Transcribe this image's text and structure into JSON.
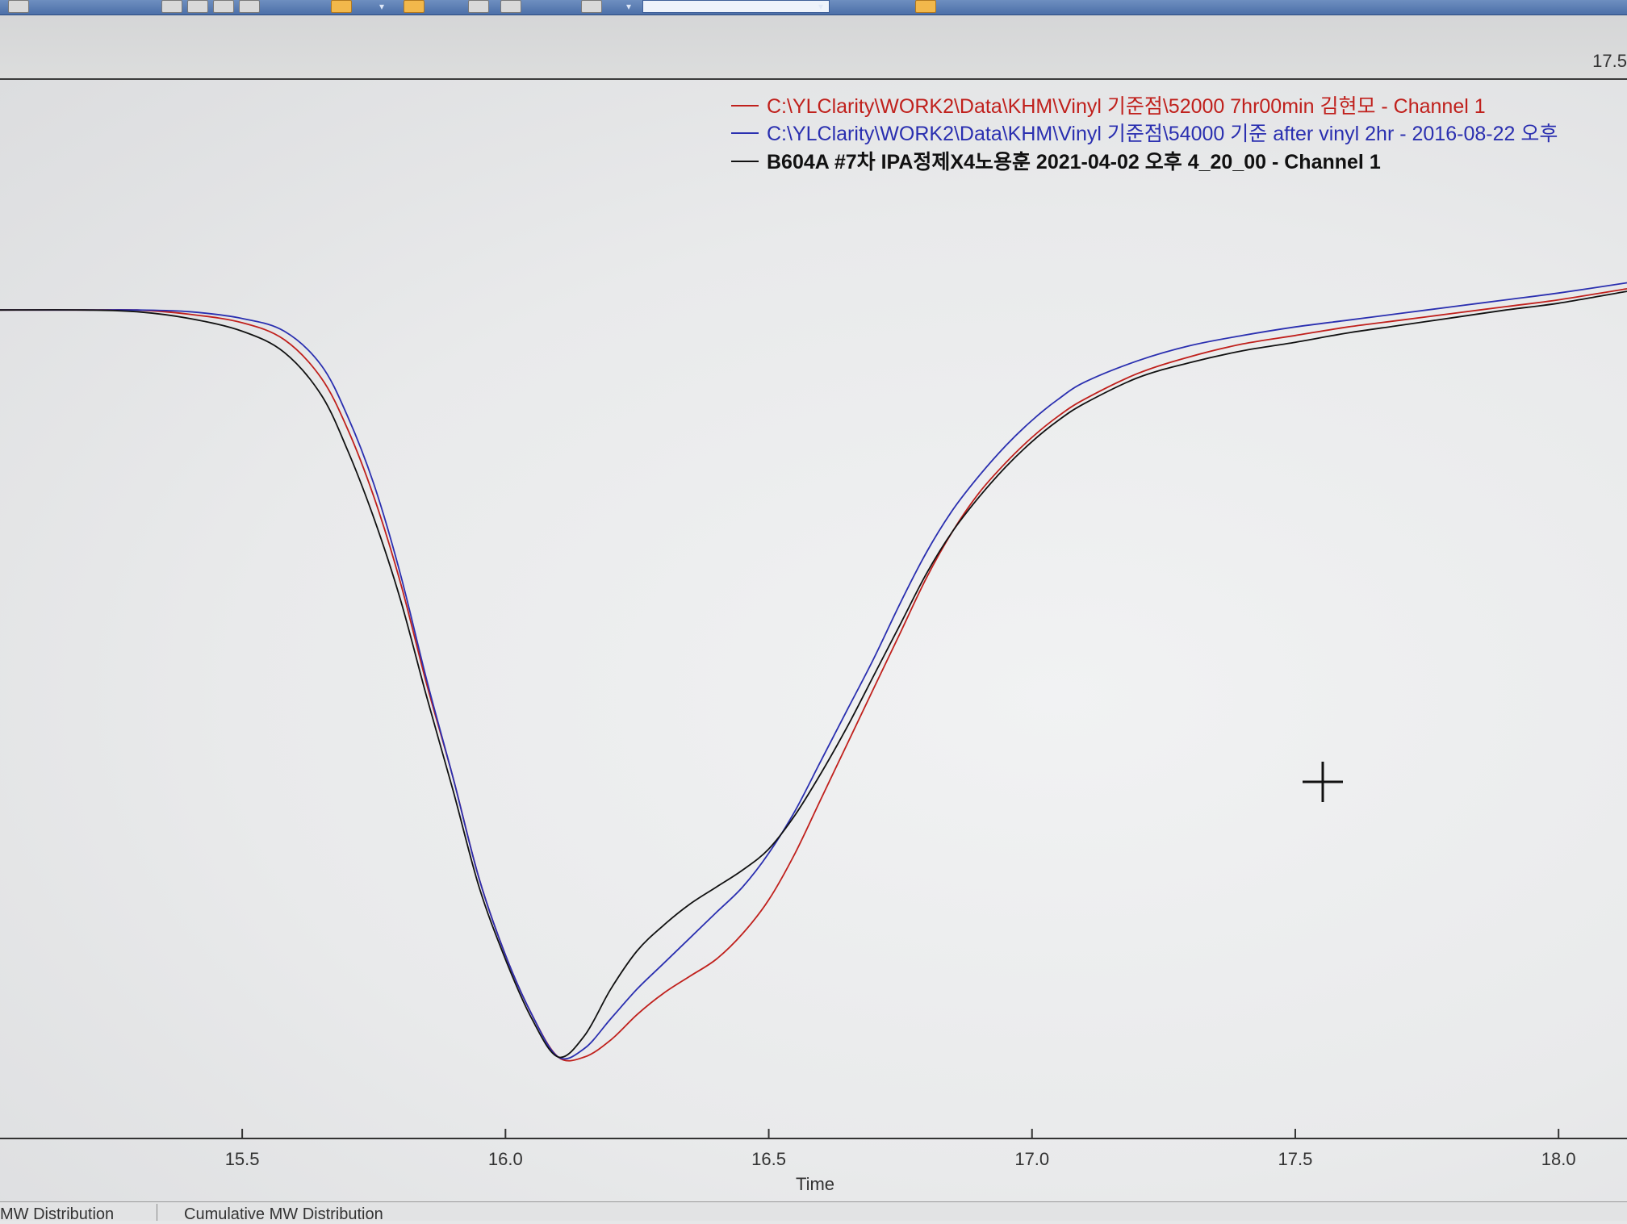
{
  "header": {
    "corner_value": "17.5"
  },
  "legend": [
    {
      "text": "C:\\YLClarity\\WORK2\\Data\\KHM\\Vinyl 기준점\\52000 7hr00min 김현모 - Channel 1",
      "color": "#c0201c"
    },
    {
      "text": "C:\\YLClarity\\WORK2\\Data\\KHM\\Vinyl 기준점\\54000 기준 after vinyl 2hr - 2016-08-22 오후",
      "color": "#2a2fb0"
    },
    {
      "text": "B604A #7차 IPA정제X4노용훈 2021-04-02 오후 4_20_00 -  Channel 1",
      "color": "#111111"
    }
  ],
  "tabs": {
    "tab1": "MW Distribution",
    "tab2": "Cumulative MW Distribution"
  },
  "cursor_icon": "crosshair-icon",
  "chart_data": {
    "type": "line",
    "title": "",
    "xlabel": "Time",
    "ylabel": "",
    "xlim": [
      15.04,
      18.13
    ],
    "ylim": [
      0,
      1
    ],
    "x_ticks": [
      15.5,
      16.0,
      16.5,
      17.0,
      17.5,
      18.0
    ],
    "x_tick_labels": [
      "15.5",
      "16.0",
      "16.5",
      "17.0",
      "17.5",
      "18.0"
    ],
    "grid": false,
    "legend_position": "top-right",
    "series": [
      {
        "name": "C:\\YLClarity\\WORK2\\Data\\KHM\\Vinyl 기준점\\52000 7hr00min 김현모 - Channel 1",
        "color": "#c0201c",
        "x": [
          15.04,
          15.2,
          15.3,
          15.4,
          15.5,
          15.58,
          15.65,
          15.7,
          15.75,
          15.8,
          15.85,
          15.9,
          15.95,
          16.0,
          16.05,
          16.1,
          16.15,
          16.2,
          16.25,
          16.3,
          16.35,
          16.4,
          16.45,
          16.5,
          16.55,
          16.6,
          16.65,
          16.7,
          16.75,
          16.8,
          16.85,
          16.9,
          16.95,
          17.0,
          17.05,
          17.1,
          17.2,
          17.3,
          17.4,
          17.5,
          17.6,
          17.7,
          17.8,
          17.9,
          18.0,
          18.13
        ],
        "y": [
          0.9,
          0.9,
          0.9,
          0.895,
          0.885,
          0.865,
          0.82,
          0.76,
          0.68,
          0.58,
          0.46,
          0.35,
          0.23,
          0.14,
          0.07,
          0.02,
          0.02,
          0.04,
          0.07,
          0.095,
          0.115,
          0.135,
          0.165,
          0.205,
          0.26,
          0.325,
          0.39,
          0.455,
          0.52,
          0.585,
          0.64,
          0.685,
          0.72,
          0.75,
          0.775,
          0.795,
          0.825,
          0.845,
          0.86,
          0.87,
          0.88,
          0.888,
          0.896,
          0.904,
          0.912,
          0.925
        ]
      },
      {
        "name": "C:\\YLClarity\\WORK2\\Data\\KHM\\Vinyl 기준점\\54000 기준 after vinyl 2hr - 2016-08-22 오후",
        "color": "#2a2fb0",
        "x": [
          15.04,
          15.2,
          15.3,
          15.4,
          15.5,
          15.58,
          15.65,
          15.7,
          15.75,
          15.8,
          15.85,
          15.9,
          15.95,
          16.0,
          16.05,
          16.1,
          16.15,
          16.2,
          16.25,
          16.3,
          16.35,
          16.4,
          16.45,
          16.5,
          16.55,
          16.6,
          16.65,
          16.7,
          16.75,
          16.8,
          16.85,
          16.9,
          16.95,
          17.0,
          17.05,
          17.1,
          17.2,
          17.3,
          17.4,
          17.5,
          17.6,
          17.7,
          17.8,
          17.9,
          18.0,
          18.13
        ],
        "y": [
          0.9,
          0.9,
          0.9,
          0.898,
          0.89,
          0.875,
          0.835,
          0.775,
          0.695,
          0.59,
          0.465,
          0.35,
          0.23,
          0.14,
          0.07,
          0.02,
          0.03,
          0.065,
          0.1,
          0.13,
          0.16,
          0.19,
          0.22,
          0.26,
          0.31,
          0.37,
          0.43,
          0.49,
          0.555,
          0.615,
          0.665,
          0.705,
          0.74,
          0.77,
          0.795,
          0.815,
          0.84,
          0.858,
          0.87,
          0.88,
          0.888,
          0.896,
          0.904,
          0.912,
          0.92,
          0.932
        ]
      },
      {
        "name": "B604A #7차 IPA정제X4노용훈 2021-04-02 오후 4_20_00 -  Channel 1",
        "color": "#111111",
        "x": [
          15.04,
          15.2,
          15.3,
          15.4,
          15.5,
          15.58,
          15.65,
          15.7,
          15.75,
          15.8,
          15.85,
          15.9,
          15.95,
          16.0,
          16.05,
          16.1,
          16.15,
          16.2,
          16.25,
          16.3,
          16.35,
          16.4,
          16.45,
          16.5,
          16.55,
          16.6,
          16.65,
          16.7,
          16.75,
          16.8,
          16.85,
          16.9,
          16.95,
          17.0,
          17.05,
          17.1,
          17.2,
          17.3,
          17.4,
          17.5,
          17.6,
          17.7,
          17.8,
          17.9,
          18.0,
          18.13
        ],
        "y": [
          0.9,
          0.9,
          0.898,
          0.89,
          0.875,
          0.85,
          0.8,
          0.735,
          0.655,
          0.56,
          0.445,
          0.335,
          0.22,
          0.135,
          0.065,
          0.02,
          0.045,
          0.1,
          0.145,
          0.175,
          0.2,
          0.22,
          0.24,
          0.265,
          0.305,
          0.355,
          0.41,
          0.47,
          0.53,
          0.59,
          0.64,
          0.68,
          0.715,
          0.745,
          0.77,
          0.79,
          0.82,
          0.838,
          0.852,
          0.862,
          0.873,
          0.882,
          0.891,
          0.9,
          0.908,
          0.922
        ]
      }
    ]
  }
}
